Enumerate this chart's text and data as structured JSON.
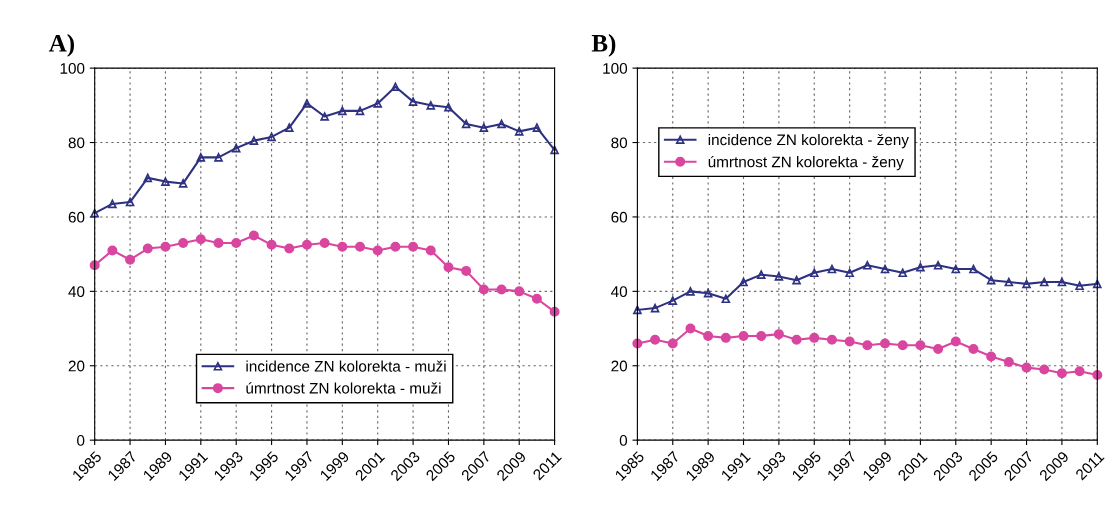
{
  "chart_data": [
    {
      "type": "line",
      "title": "A)",
      "x": [
        1985,
        1986,
        1987,
        1988,
        1989,
        1990,
        1991,
        1992,
        1993,
        1994,
        1995,
        1996,
        1997,
        1998,
        1999,
        2000,
        2001,
        2002,
        2003,
        2004,
        2005,
        2006,
        2007,
        2008,
        2009,
        2010,
        2011
      ],
      "series": [
        {
          "name": "incidence ZN kolorekta - muži",
          "color": "#2e3180",
          "marker": "triangle",
          "values": [
            61,
            63.5,
            64,
            70.5,
            69.5,
            69,
            76,
            76,
            78.5,
            80.5,
            81.5,
            84,
            90.5,
            87,
            88.5,
            88.5,
            90.5,
            95,
            91,
            90,
            89.5,
            85,
            84,
            85,
            83,
            84,
            78
          ]
        },
        {
          "name": "úmrtnost ZN kolorekta - muži",
          "color": "#d9469f",
          "marker": "circle",
          "values": [
            47,
            51,
            48.5,
            51.5,
            52,
            53,
            54,
            53,
            53,
            55,
            52.5,
            51.5,
            52.5,
            53,
            52,
            52,
            51,
            52,
            52,
            51,
            46.5,
            45.5,
            40.5,
            40.5,
            40,
            38,
            34.5
          ]
        }
      ],
      "xlim": [
        1985,
        2011
      ],
      "xticks": [
        1985,
        1987,
        1989,
        1991,
        1993,
        1995,
        1997,
        1999,
        2001,
        2003,
        2005,
        2007,
        2009,
        2011
      ],
      "ylim": [
        0,
        100
      ],
      "yticks": [
        0,
        20,
        40,
        60,
        80,
        100
      ],
      "grid": true,
      "legend": "bottom",
      "line_style": "solid"
    },
    {
      "type": "line",
      "title": "B)",
      "x": [
        1985,
        1986,
        1987,
        1988,
        1989,
        1990,
        1991,
        1992,
        1993,
        1994,
        1995,
        1996,
        1997,
        1998,
        1999,
        2000,
        2001,
        2002,
        2003,
        2004,
        2005,
        2006,
        2007,
        2008,
        2009,
        2010,
        2011
      ],
      "series": [
        {
          "name": "incidence ZN kolorekta - ženy",
          "color": "#2e3180",
          "marker": "triangle",
          "values": [
            35,
            35.5,
            37.5,
            40,
            39.5,
            38,
            42.5,
            44.5,
            44,
            43,
            45,
            46,
            45,
            47,
            46,
            45,
            46.5,
            47,
            46,
            46,
            43,
            42.5,
            42,
            42.5,
            42.5,
            41.5,
            42
          ]
        },
        {
          "name": "úmrtnost ZN kolorekta - ženy",
          "color": "#d9469f",
          "marker": "circle",
          "values": [
            26,
            27,
            26,
            30,
            28,
            27.5,
            28,
            28,
            28.5,
            27,
            27.5,
            27,
            26.5,
            25.5,
            26,
            25.5,
            25.5,
            24.5,
            26.5,
            24.5,
            22.5,
            21,
            19.5,
            19,
            18,
            18.5,
            17.5
          ]
        }
      ],
      "xlim": [
        1985,
        2011
      ],
      "xticks": [
        1985,
        1987,
        1989,
        1991,
        1993,
        1995,
        1997,
        1999,
        2001,
        2003,
        2005,
        2007,
        2009,
        2011
      ],
      "ylim": [
        0,
        100
      ],
      "yticks": [
        0,
        20,
        40,
        60,
        80,
        100
      ],
      "grid": true,
      "legend": "upper left",
      "line_style": "solid"
    }
  ]
}
